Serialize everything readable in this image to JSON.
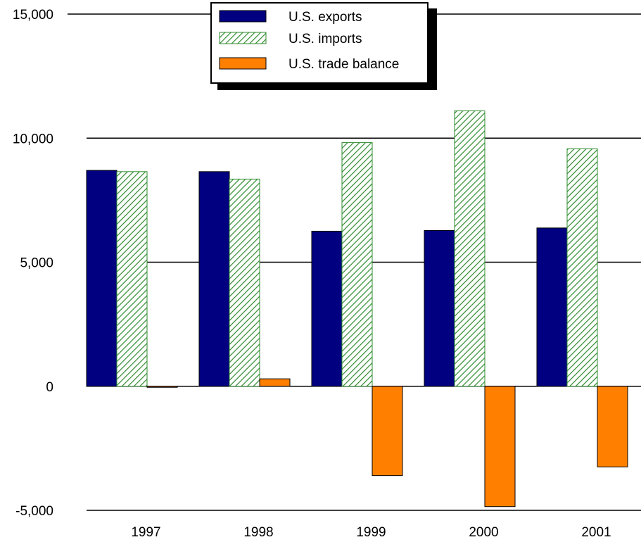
{
  "chart_data": {
    "type": "bar",
    "title": "",
    "xlabel": "",
    "ylabel": "",
    "categories": [
      "1997",
      "1998",
      "1999",
      "2000",
      "2001"
    ],
    "series": [
      {
        "name": "U.S. exports",
        "values": [
          8700,
          8650,
          6250,
          6280,
          6380
        ],
        "color": "#000080",
        "pattern": "solid"
      },
      {
        "name": "U.S. imports",
        "values": [
          8650,
          8350,
          9820,
          11100,
          9570
        ],
        "color": "#2e8b2e",
        "pattern": "hatched"
      },
      {
        "name": "U.S. trade balance",
        "values": [
          -40,
          300,
          -3600,
          -4850,
          -3250
        ],
        "color": "#ff8000",
        "pattern": "solid"
      }
    ],
    "ylim": [
      -5000,
      15000
    ],
    "yticks": [
      -5000,
      0,
      5000,
      10000,
      15000
    ],
    "ytick_labels": [
      "-5,000",
      "0",
      "5,000",
      "10,000",
      "15,000"
    ],
    "grid": true,
    "legend_position": "top-center"
  }
}
